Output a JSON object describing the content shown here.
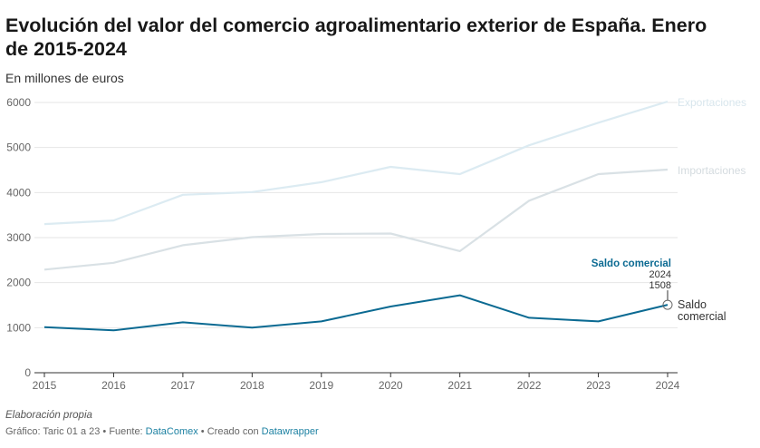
{
  "header": {
    "title": "Evolución del valor del comercio agroalimentario exterior de España. Enero de 2015-2024",
    "subtitle": "En millones de euros"
  },
  "chart_data": {
    "type": "line",
    "x": [
      2015,
      2016,
      2017,
      2018,
      2019,
      2020,
      2021,
      2022,
      2023,
      2024
    ],
    "ylim": [
      0,
      6000
    ],
    "yticks": [
      0,
      1000,
      2000,
      3000,
      4000,
      5000,
      6000
    ],
    "grid": true,
    "series": [
      {
        "name": "Exportaciones",
        "color": "#dcebf2",
        "values": [
          3300,
          3380,
          3950,
          4010,
          4230,
          4570,
          4410,
          5050,
          5550,
          6020
        ]
      },
      {
        "name": "Importaciones",
        "color": "#d9e1e5",
        "values": [
          2290,
          2440,
          2830,
          3010,
          3080,
          3090,
          2700,
          3820,
          4410,
          4510
        ]
      },
      {
        "name": "Saldo comercial",
        "color": "#0b6a92",
        "values": [
          1010,
          940,
          1120,
          1000,
          1140,
          1470,
          1720,
          1220,
          1140,
          1508
        ]
      }
    ],
    "annotation": {
      "label": "Saldo comercial",
      "year": "2024",
      "value": "1508"
    }
  },
  "footer": {
    "note": "Elaboración propia",
    "graphic_prefix": "Gráfico: Taric 01 a 23 • Fuente: ",
    "source": "DataComex",
    "created_prefix": " • Creado con ",
    "tool": "Datawrapper"
  }
}
